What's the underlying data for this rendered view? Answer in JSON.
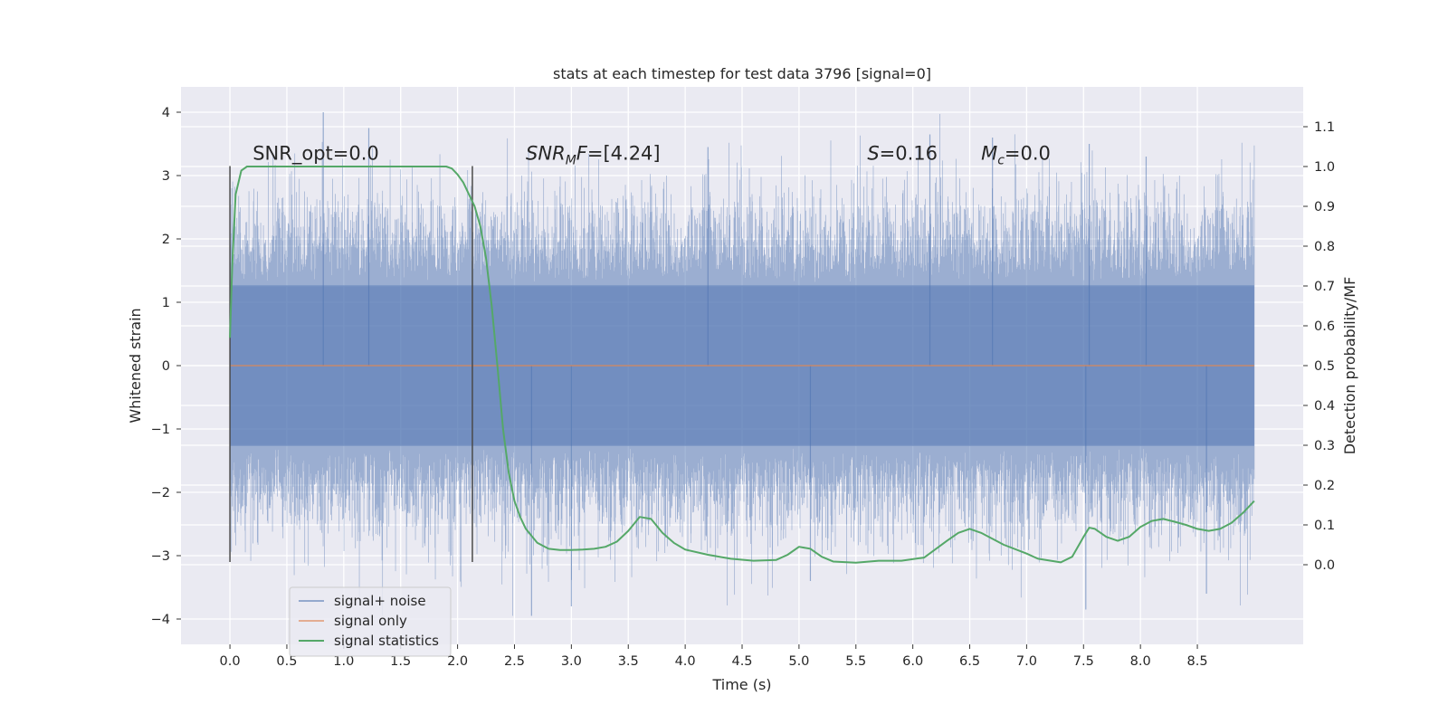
{
  "chart_data": {
    "type": "line",
    "title": "stats at each timestep for test data 3796 [signal=0]",
    "xlabel": "Time (s)",
    "ylabel_left": "Whitened strain",
    "ylabel_right": "Detection probability/MF",
    "xlim": [
      -0.43,
      9.43
    ],
    "ylim_left": [
      -4.4,
      4.4
    ],
    "ylim_right": [
      -0.2,
      1.2
    ],
    "x_ticks": [
      0.0,
      0.5,
      1.0,
      1.5,
      2.0,
      2.5,
      3.0,
      3.5,
      4.0,
      4.5,
      5.0,
      5.5,
      6.0,
      6.5,
      7.0,
      7.5,
      8.0,
      8.5
    ],
    "x_tick_labels": [
      "0.0",
      "0.5",
      "1.0",
      "1.5",
      "2.0",
      "2.5",
      "3.0",
      "3.5",
      "4.0",
      "4.5",
      "5.0",
      "5.5",
      "6.0",
      "6.5",
      "7.0",
      "7.5",
      "8.0",
      "8.5"
    ],
    "y_left_ticks": [
      4,
      3,
      2,
      1,
      0,
      -1,
      -2,
      -3,
      -4
    ],
    "y_left_tick_labels": [
      "4",
      "3",
      "2",
      "1",
      "0",
      "−1",
      "−2",
      "−3",
      "−4"
    ],
    "y_right_ticks": [
      1.1,
      1.0,
      0.9,
      0.8,
      0.7,
      0.6,
      0.5,
      0.4,
      0.3,
      0.2,
      0.1,
      0.0
    ],
    "y_right_tick_labels": [
      "1.1",
      "1.0",
      "0.9",
      "0.8",
      "0.7",
      "0.6",
      "0.5",
      "0.4",
      "0.3",
      "0.2",
      "0.1",
      "0.0"
    ],
    "grid": true,
    "legend_position": "lower-left",
    "colors": {
      "background": "#eaeaf2",
      "grid": "#ffffff",
      "signal_noise": "#4c72b0",
      "signal_only": "#dd8452",
      "signal_statistics": "#55a868",
      "vlines": "#4a4a4a"
    },
    "series": [
      {
        "name": "signal+ noise",
        "axis": "left",
        "x_range": [
          0.0,
          9.0
        ],
        "sample_rate": 2048,
        "core_std": 0.65,
        "envelope_max": 4.0,
        "envelope_min": -3.95,
        "note": "dense whitened noise"
      },
      {
        "name": "signal only",
        "axis": "left",
        "x": [
          0.0,
          9.0
        ],
        "y": [
          0.0,
          0.0
        ]
      },
      {
        "name": "signal statistics",
        "axis": "right",
        "x": [
          0.0,
          0.02,
          0.05,
          0.1,
          0.15,
          0.25,
          0.4,
          0.6,
          0.8,
          1.0,
          1.2,
          1.4,
          1.6,
          1.75,
          1.9,
          1.95,
          2.0,
          2.05,
          2.1,
          2.15,
          2.2,
          2.25,
          2.3,
          2.35,
          2.4,
          2.45,
          2.5,
          2.55,
          2.6,
          2.7,
          2.8,
          2.9,
          3.0,
          3.1,
          3.2,
          3.3,
          3.4,
          3.5,
          3.6,
          3.7,
          3.8,
          3.9,
          4.0,
          4.2,
          4.4,
          4.6,
          4.8,
          4.9,
          5.0,
          5.1,
          5.2,
          5.3,
          5.5,
          5.7,
          5.9,
          6.1,
          6.3,
          6.4,
          6.5,
          6.6,
          6.8,
          7.0,
          7.1,
          7.3,
          7.4,
          7.5,
          7.55,
          7.6,
          7.7,
          7.8,
          7.9,
          8.0,
          8.1,
          8.2,
          8.3,
          8.4,
          8.5,
          8.6,
          8.7,
          8.8,
          8.9,
          9.0
        ],
        "y": [
          0.57,
          0.75,
          0.93,
          0.99,
          1.0,
          1.0,
          1.0,
          1.0,
          1.0,
          1.0,
          1.0,
          1.0,
          1.0,
          1.0,
          1.0,
          0.995,
          0.98,
          0.96,
          0.93,
          0.9,
          0.85,
          0.77,
          0.65,
          0.5,
          0.34,
          0.23,
          0.16,
          0.12,
          0.09,
          0.055,
          0.04,
          0.037,
          0.037,
          0.038,
          0.04,
          0.045,
          0.058,
          0.085,
          0.12,
          0.115,
          0.08,
          0.055,
          0.038,
          0.025,
          0.015,
          0.01,
          0.012,
          0.025,
          0.045,
          0.04,
          0.02,
          0.008,
          0.005,
          0.01,
          0.01,
          0.018,
          0.06,
          0.08,
          0.09,
          0.08,
          0.05,
          0.028,
          0.015,
          0.006,
          0.02,
          0.07,
          0.093,
          0.09,
          0.07,
          0.06,
          0.07,
          0.095,
          0.11,
          0.115,
          0.108,
          0.1,
          0.09,
          0.085,
          0.09,
          0.105,
          0.13,
          0.16
        ]
      }
    ],
    "vlines_x": [
      0.0,
      2.13
    ],
    "vlines_y_range": [
      -3.1,
      3.15
    ],
    "annotations": [
      {
        "key": "snr_opt",
        "x": 0.2,
        "y": 3.25,
        "text": "SNR_opt=0.0"
      },
      {
        "key": "snr_mf",
        "x": 2.6,
        "y": 3.25,
        "main": "SNR",
        "sub": "M",
        "tail": "F=[4.24]"
      },
      {
        "key": "s",
        "x": 5.6,
        "y": 3.25,
        "main": "S",
        "tail": "=0.16"
      },
      {
        "key": "mc",
        "x": 6.6,
        "y": 3.25,
        "main": "M",
        "sub": "c",
        "tail": "=0.0"
      }
    ],
    "legend": [
      {
        "label": "signal+ noise",
        "color": "#4c72b0"
      },
      {
        "label": "signal only",
        "color": "#dd8452"
      },
      {
        "label": "signal statistics",
        "color": "#55a868"
      }
    ]
  }
}
